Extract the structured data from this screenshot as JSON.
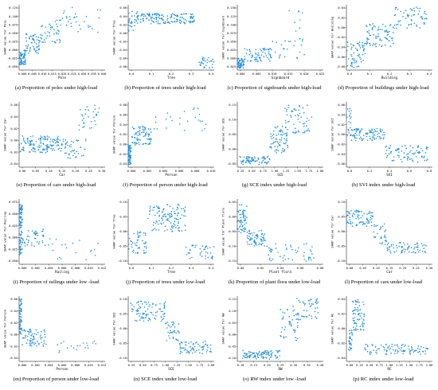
{
  "chart_data": [
    {
      "type": "scatter",
      "caption": "(a) Proportion of poles under high-load",
      "xlabel": "Pole",
      "ylabel": "SHAP value for Pole",
      "xticks": [
        "0.000",
        "0.005",
        "0.010",
        "0.015",
        "0.020",
        "0.025",
        "0.030",
        "0.035",
        "0.040"
      ],
      "yticks": [
        "-0.050",
        "-0.025",
        "0.000",
        "0.025",
        "0.050",
        "0.075",
        "0.100",
        "0.125"
      ],
      "xlim": [
        0,
        0.04
      ],
      "ylim": [
        -0.06,
        0.135
      ],
      "color": "#1f8fe6",
      "clusters": [
        {
          "x": [
            0,
            0.003
          ],
          "y": [
            -0.045,
            0.0
          ],
          "n": 70
        },
        {
          "x": [
            0.003,
            0.01
          ],
          "y": [
            -0.01,
            0.05
          ],
          "n": 60
        },
        {
          "x": [
            0.01,
            0.02
          ],
          "y": [
            0.02,
            0.09
          ],
          "n": 45
        },
        {
          "x": [
            0.02,
            0.038
          ],
          "y": [
            0.05,
            0.13
          ],
          "n": 30
        }
      ]
    },
    {
      "type": "scatter",
      "caption": "(b) Proportion of trees under high-load",
      "xlabel": "Tree",
      "ylabel": "SHAP value for Tree",
      "xticks": [
        "0.0",
        "0.1",
        "0.2",
        "0.3",
        "0.4"
      ],
      "yticks": [
        "-0.08",
        "-0.06",
        "-0.04",
        "-0.02",
        "0.00",
        "0.02",
        "0.04",
        "0.06"
      ],
      "xlim": [
        0,
        0.45
      ],
      "ylim": [
        -0.09,
        0.065
      ],
      "color": "#1f8fe6",
      "clusters": [
        {
          "x": [
            0.0,
            0.05
          ],
          "y": [
            0.0,
            0.06
          ],
          "n": 30
        },
        {
          "x": [
            0.05,
            0.35
          ],
          "y": [
            0.02,
            0.045
          ],
          "n": 150
        },
        {
          "x": [
            0.36,
            0.45
          ],
          "y": [
            -0.085,
            -0.06
          ],
          "n": 30
        }
      ]
    },
    {
      "type": "scatter",
      "caption": "(c) Proportion of signboards under high-load",
      "xlabel": "Signboard",
      "ylabel": "SHAP value for Signboard",
      "xticks": [
        "0.000",
        "0.005",
        "0.010",
        "0.015",
        "0.020",
        "0.025"
      ],
      "yticks": [
        "-0.025",
        "0.000",
        "0.025",
        "0.050",
        "0.075",
        "0.100",
        "0.125",
        "0.150"
      ],
      "xlim": [
        0,
        0.025
      ],
      "ylim": [
        -0.035,
        0.16
      ],
      "color": "#1f8fe6",
      "clusters": [
        {
          "x": [
            0,
            0.002
          ],
          "y": [
            -0.03,
            0.0
          ],
          "n": 60
        },
        {
          "x": [
            0.002,
            0.01
          ],
          "y": [
            -0.01,
            0.03
          ],
          "n": 70
        },
        {
          "x": [
            0.01,
            0.02
          ],
          "y": [
            0.0,
            0.06
          ],
          "n": 25
        },
        {
          "x": [
            0.015,
            0.02
          ],
          "y": [
            0.08,
            0.15
          ],
          "n": 8
        }
      ]
    },
    {
      "type": "scatter",
      "caption": "(d) Proportion of buildings under high-load",
      "xlabel": "Building",
      "ylabel": "SHAP value for Building",
      "xticks": [
        "0.0",
        "0.1",
        "0.2",
        "0.3",
        "0.4"
      ],
      "yticks": [
        "-0.08",
        "-0.06",
        "-0.04",
        "-0.02",
        "0.00",
        "0.02",
        "0.04"
      ],
      "xlim": [
        0,
        0.45
      ],
      "ylim": [
        -0.09,
        0.05
      ],
      "color": "#1f8fe6",
      "clusters": [
        {
          "x": [
            0.0,
            0.1
          ],
          "y": [
            -0.085,
            -0.03
          ],
          "n": 60
        },
        {
          "x": [
            0.1,
            0.25
          ],
          "y": [
            -0.04,
            0.01
          ],
          "n": 80
        },
        {
          "x": [
            0.25,
            0.42
          ],
          "y": [
            0.0,
            0.045
          ],
          "n": 60
        }
      ]
    },
    {
      "type": "scatter",
      "caption": "(e) Proportion of cars under high-load",
      "xlabel": "Car",
      "ylabel": "SHAP value for Car",
      "xticks": [
        "0.00",
        "0.05",
        "0.10",
        "0.15",
        "0.20",
        "0.25",
        "0.30"
      ],
      "yticks": [
        "-0.04",
        "-0.02",
        "0.00",
        "0.02",
        "0.04",
        "0.06"
      ],
      "xlim": [
        0,
        0.32
      ],
      "ylim": [
        -0.045,
        0.07
      ],
      "color": "#1f8fe6",
      "clusters": [
        {
          "x": [
            0.0,
            0.15
          ],
          "y": [
            -0.02,
            0.01
          ],
          "n": 130
        },
        {
          "x": [
            0.15,
            0.25
          ],
          "y": [
            -0.03,
            0.005
          ],
          "n": 50
        },
        {
          "x": [
            0.22,
            0.3
          ],
          "y": [
            0.02,
            0.065
          ],
          "n": 30
        }
      ]
    },
    {
      "type": "scatter",
      "caption": "(f) Proportion of person under high-load",
      "xlabel": "Person",
      "ylabel": "SHAP value for Person",
      "xticks": [
        "0.000",
        "0.002",
        "0.004",
        "0.006",
        "0.008",
        "0.010"
      ],
      "yticks": [
        "-0.04",
        "-0.02",
        "0.00",
        "0.02",
        "0.04",
        "0.06",
        "0.08"
      ],
      "xlim": [
        0,
        0.011
      ],
      "ylim": [
        -0.045,
        0.09
      ],
      "color": "#1f8fe6",
      "clusters": [
        {
          "x": [
            0,
            0.0004
          ],
          "y": [
            -0.04,
            0.0
          ],
          "n": 60
        },
        {
          "x": [
            0.0004,
            0.003
          ],
          "y": [
            0.0,
            0.04
          ],
          "n": 80
        },
        {
          "x": [
            0.003,
            0.01
          ],
          "y": [
            0.03,
            0.08
          ],
          "n": 25
        }
      ]
    },
    {
      "type": "scatter",
      "caption": "(g) SCE index under high-load",
      "xlabel": "SCE",
      "ylabel": "SHAP value for SCE",
      "xticks": [
        "0.25",
        "0.50",
        "0.75",
        "1.00",
        "1.25",
        "1.50",
        "1.75",
        "2.00"
      ],
      "yticks": [
        "-0.05",
        "0.00",
        "0.05",
        "0.10",
        "0.15"
      ],
      "xlim": [
        0.2,
        2.05
      ],
      "ylim": [
        -0.07,
        0.17
      ],
      "color": "#1f8fe6",
      "clusters": [
        {
          "x": [
            0.25,
            0.9
          ],
          "y": [
            -0.06,
            -0.03
          ],
          "n": 70
        },
        {
          "x": [
            0.9,
            1.3
          ],
          "y": [
            -0.02,
            0.08
          ],
          "n": 70
        },
        {
          "x": [
            1.2,
            1.8
          ],
          "y": [
            0.05,
            0.16
          ],
          "n": 60
        }
      ]
    },
    {
      "type": "scatter",
      "caption": "(h) SVI index under high-load",
      "xlabel": "SVI",
      "ylabel": "SHAP value for SVI",
      "xticks": [
        "0.0",
        "0.2",
        "0.4",
        "0.6",
        "0.8"
      ],
      "yticks": [
        "-0.06",
        "-0.04",
        "-0.02",
        "0.00",
        "0.02",
        "0.04",
        "0.06"
      ],
      "xlim": [
        0,
        0.9
      ],
      "ylim": [
        -0.065,
        0.07
      ],
      "color": "#1f8fe6",
      "clusters": [
        {
          "x": [
            0.0,
            0.05
          ],
          "y": [
            0.0,
            0.06
          ],
          "n": 20
        },
        {
          "x": [
            0.05,
            0.4
          ],
          "y": [
            -0.01,
            0.015
          ],
          "n": 90
        },
        {
          "x": [
            0.4,
            0.85
          ],
          "y": [
            -0.055,
            -0.02
          ],
          "n": 80
        }
      ]
    },
    {
      "type": "scatter",
      "caption": "(i) Proportion of railings under low -load",
      "xlabel": "Railing",
      "ylabel": "SHAP value for Railing",
      "xticks": [
        "0.000",
        "0.002",
        "0.004",
        "0.006",
        "0.008",
        "0.010",
        "0.012"
      ],
      "yticks": [
        "-0.050",
        "-0.025",
        "0.000",
        "0.025",
        "0.050",
        "0.075"
      ],
      "xlim": [
        0,
        0.013
      ],
      "ylim": [
        -0.06,
        0.09
      ],
      "color": "#1f8fe6",
      "clusters": [
        {
          "x": [
            0,
            0.0005
          ],
          "y": [
            -0.04,
            0.08
          ],
          "n": 90
        },
        {
          "x": [
            0.0005,
            0.004
          ],
          "y": [
            -0.02,
            0.02
          ],
          "n": 40
        },
        {
          "x": [
            0.004,
            0.012
          ],
          "y": [
            -0.05,
            0.0
          ],
          "n": 20
        }
      ]
    },
    {
      "type": "scatter",
      "caption": "(j) Proportion of trees under low-load",
      "xlabel": "Tree",
      "ylabel": "SHAP value for Tree",
      "xticks": [
        "0.0",
        "0.1",
        "0.2",
        "0.3",
        "0.4"
      ],
      "yticks": [
        "-0.10",
        "-0.05",
        "0.00",
        "0.05",
        "0.10"
      ],
      "xlim": [
        0,
        0.45
      ],
      "ylim": [
        -0.12,
        0.12
      ],
      "color": "#1f8fe6",
      "clusters": [
        {
          "x": [
            0.0,
            0.1
          ],
          "y": [
            -0.08,
            0.0
          ],
          "n": 50
        },
        {
          "x": [
            0.1,
            0.3
          ],
          "y": [
            0.0,
            0.1
          ],
          "n": 120
        },
        {
          "x": [
            0.3,
            0.45
          ],
          "y": [
            -0.1,
            -0.05
          ],
          "n": 40
        }
      ]
    },
    {
      "type": "scatter",
      "caption": "(k) Proportion of plant flora under low-load",
      "xlabel": "Plant flora",
      "ylabel": "SHAP value for Plant flora",
      "xticks": [
        "0.00",
        "0.02",
        "0.04",
        "0.06",
        "0.08"
      ],
      "yticks": [
        "-0.15",
        "-0.10",
        "-0.05",
        "0.00",
        "0.05"
      ],
      "xlim": [
        0,
        0.09
      ],
      "ylim": [
        -0.17,
        0.08
      ],
      "color": "#1f8fe6",
      "clusters": [
        {
          "x": [
            0.0,
            0.01
          ],
          "y": [
            -0.05,
            0.06
          ],
          "n": 60
        },
        {
          "x": [
            0.01,
            0.03
          ],
          "y": [
            -0.1,
            -0.04
          ],
          "n": 70
        },
        {
          "x": [
            0.03,
            0.08
          ],
          "y": [
            -0.16,
            -0.09
          ],
          "n": 50
        }
      ]
    },
    {
      "type": "scatter",
      "caption": "(l) Proportion of cars under low-load",
      "xlabel": "Car",
      "ylabel": "SHAP value for Car",
      "xticks": [
        "0.00",
        "0.05",
        "0.10",
        "0.15",
        "0.20",
        "0.25",
        "0.30"
      ],
      "yticks": [
        "-0.10",
        "-0.05",
        "0.00",
        "0.05",
        "0.10"
      ],
      "xlim": [
        0,
        0.32
      ],
      "ylim": [
        -0.12,
        0.12
      ],
      "color": "#1f8fe6",
      "clusters": [
        {
          "x": [
            0.0,
            0.1
          ],
          "y": [
            0.02,
            0.08
          ],
          "n": 80
        },
        {
          "x": [
            0.1,
            0.15
          ],
          "y": [
            -0.05,
            0.03
          ],
          "n": 30
        },
        {
          "x": [
            0.15,
            0.3
          ],
          "y": [
            -0.08,
            -0.04
          ],
          "n": 70
        }
      ]
    },
    {
      "type": "scatter",
      "caption": "(m) Proportion of person under low-load",
      "xlabel": "Person",
      "ylabel": "SHAP value for Person",
      "xticks": [
        "0.000",
        "0.002",
        "0.004",
        "0.006",
        "0.008",
        "0.010",
        "0.012"
      ],
      "yticks": [
        "-0.04",
        "-0.02",
        "0.00",
        "0.02",
        "0.04",
        "0.06"
      ],
      "xlim": [
        0,
        0.013
      ],
      "ylim": [
        -0.045,
        0.065
      ],
      "color": "#1f8fe6",
      "clusters": [
        {
          "x": [
            0,
            0.0004
          ],
          "y": [
            0.0,
            0.06
          ],
          "n": 60
        },
        {
          "x": [
            0.0004,
            0.004
          ],
          "y": [
            -0.02,
            0.01
          ],
          "n": 70
        },
        {
          "x": [
            0.004,
            0.012
          ],
          "y": [
            -0.03,
            -0.01
          ],
          "n": 20
        }
      ]
    },
    {
      "type": "scatter",
      "caption": "(n) SCE index under low-load",
      "xlabel": "SCE",
      "ylabel": "SHAP value for SCE",
      "xticks": [
        "0.25",
        "0.50",
        "0.75",
        "1.00",
        "1.25",
        "1.50",
        "1.75",
        "2.00"
      ],
      "yticks": [
        "-0.10",
        "-0.05",
        "0.00",
        "0.05",
        "0.10"
      ],
      "xlim": [
        0.2,
        2.05
      ],
      "ylim": [
        -0.13,
        0.13
      ],
      "color": "#1f8fe6",
      "clusters": [
        {
          "x": [
            0.25,
            1.0
          ],
          "y": [
            0.03,
            0.11
          ],
          "n": 90
        },
        {
          "x": [
            1.0,
            1.3
          ],
          "y": [
            -0.05,
            0.03
          ],
          "n": 40
        },
        {
          "x": [
            1.3,
            2.0
          ],
          "y": [
            -0.1,
            -0.05
          ],
          "n": 70
        }
      ]
    },
    {
      "type": "scatter",
      "caption": "(o) RW index under low -load",
      "xlabel": "RW",
      "ylabel": "SHAP value for RW",
      "xticks": [
        "0.10",
        "0.15",
        "0.20",
        "0.25",
        "0.30",
        "0.35",
        "0.40"
      ],
      "yticks": [
        "-0.10",
        "-0.05",
        "0.00",
        "0.05",
        "0.10",
        "0.15"
      ],
      "xlim": [
        0.08,
        0.42
      ],
      "ylim": [
        -0.14,
        0.16
      ],
      "color": "#1f8fe6",
      "clusters": [
        {
          "x": [
            0.1,
            0.25
          ],
          "y": [
            -0.13,
            -0.09
          ],
          "n": 100
        },
        {
          "x": [
            0.25,
            0.32
          ],
          "y": [
            -0.05,
            0.1
          ],
          "n": 40
        },
        {
          "x": [
            0.3,
            0.4
          ],
          "y": [
            0.05,
            0.15
          ],
          "n": 50
        }
      ]
    },
    {
      "type": "scatter",
      "caption": "(p) RC index under low-load",
      "xlabel": "RC",
      "ylabel": "SHAP value for RC",
      "xticks": [
        "0.00",
        "0.25",
        "0.50",
        "0.75",
        "1.00",
        "1.25",
        "1.50",
        "1.75",
        "2.00"
      ],
      "yticks": [
        "-0.04",
        "-0.02",
        "0.00",
        "0.02",
        "0.04"
      ],
      "xlim": [
        -0.05,
        2.1
      ],
      "ylim": [
        -0.045,
        0.05
      ],
      "color": "#1f8fe6",
      "clusters": [
        {
          "x": [
            0.0,
            0.1
          ],
          "y": [
            -0.03,
            0.0
          ],
          "n": 30
        },
        {
          "x": [
            0.1,
            0.4
          ],
          "y": [
            0.0,
            0.045
          ],
          "n": 70
        },
        {
          "x": [
            0.4,
            2.0
          ],
          "y": [
            -0.035,
            -0.02
          ],
          "n": 100
        }
      ]
    }
  ]
}
